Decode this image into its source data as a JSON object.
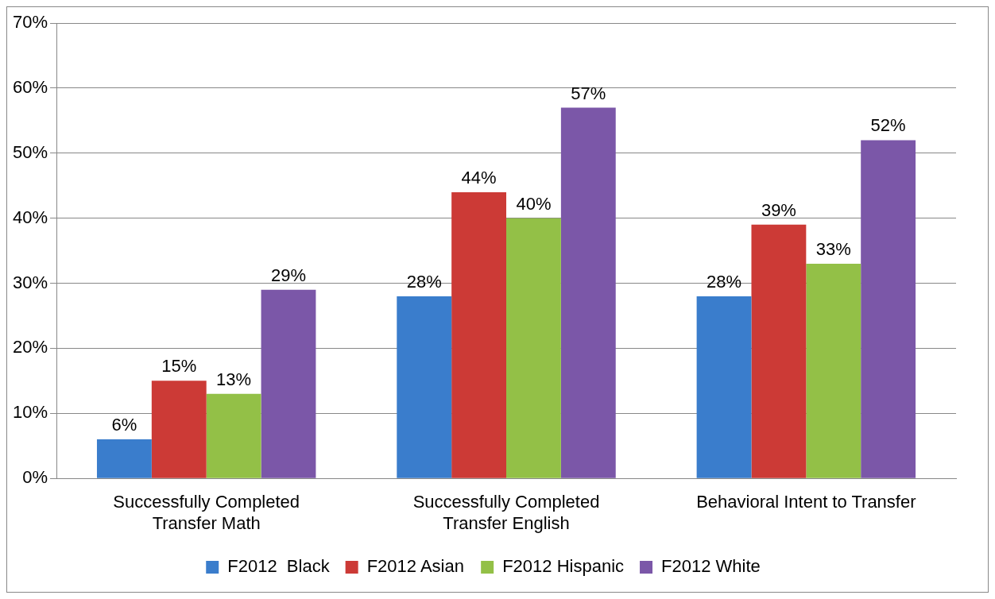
{
  "chart_data": {
    "type": "bar",
    "categories": [
      "Successfully Completed Transfer Math",
      "Successfully Completed Transfer English",
      "Behavioral Intent to Transfer"
    ],
    "series": [
      {
        "name": "F2012  Black",
        "color": "#3a7dcc",
        "values": [
          6,
          28,
          28
        ],
        "value_labels": [
          "6%",
          "28%",
          "28%"
        ]
      },
      {
        "name": "F2012 Asian",
        "color": "#cc3a36",
        "values": [
          15,
          44,
          39
        ],
        "value_labels": [
          "15%",
          "44%",
          "39%"
        ]
      },
      {
        "name": "F2012 Hispanic",
        "color": "#93c047",
        "values": [
          13,
          40,
          33
        ],
        "value_labels": [
          "13%",
          "40%",
          "33%"
        ]
      },
      {
        "name": "F2012 White",
        "color": "#7b57a8",
        "values": [
          29,
          57,
          52
        ],
        "value_labels": [
          "29%",
          "57%",
          "52%"
        ]
      }
    ],
    "ylim": [
      0,
      70
    ],
    "yticks": [
      {
        "value": 0,
        "label": "0%"
      },
      {
        "value": 10,
        "label": "10%"
      },
      {
        "value": 20,
        "label": "20%"
      },
      {
        "value": 30,
        "label": "30%"
      },
      {
        "value": 40,
        "label": "40%"
      },
      {
        "value": 50,
        "label": "50%"
      },
      {
        "value": 60,
        "label": "60%"
      },
      {
        "value": 70,
        "label": "70%"
      }
    ],
    "grid": "y",
    "legend": "bottom"
  }
}
